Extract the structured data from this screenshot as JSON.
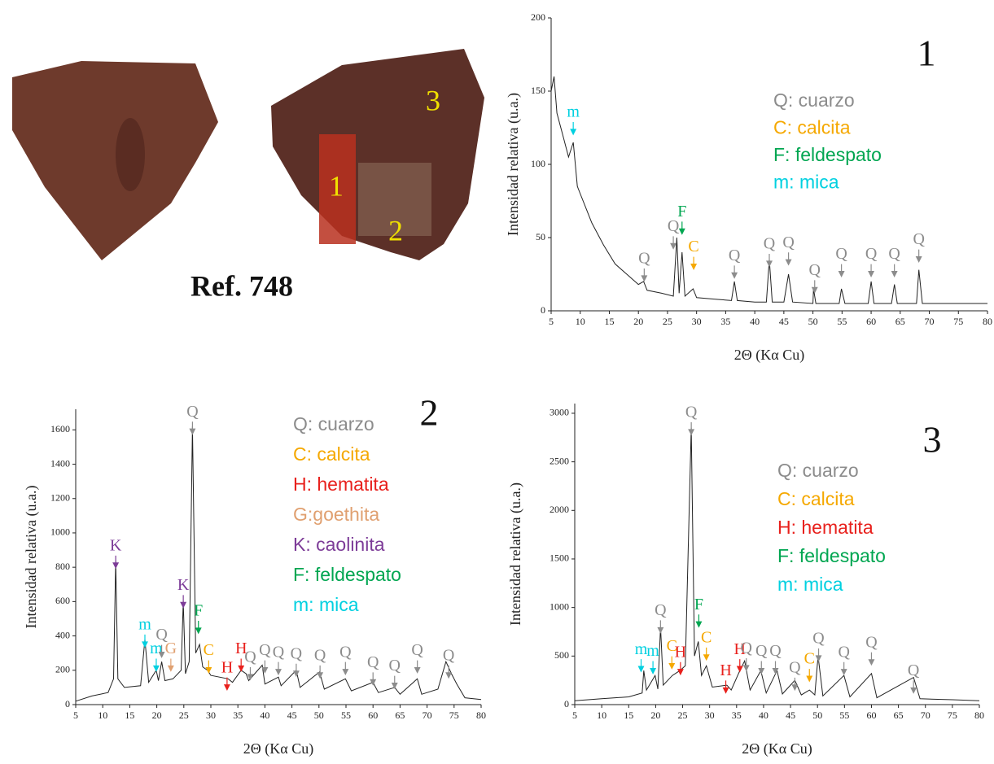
{
  "photo": {
    "caption": "Ref. 748",
    "markers": [
      "1",
      "2",
      "3"
    ]
  },
  "chart_data": [
    {
      "type": "line",
      "panel": "1",
      "xlabel": "2Θ (Kα Cu)",
      "ylabel": "Intensidad relativa (u.a.)",
      "color": "#222222",
      "xlim": [
        5,
        80
      ],
      "xticks": [
        5,
        10,
        15,
        20,
        25,
        30,
        35,
        40,
        45,
        50,
        55,
        60,
        65,
        70,
        75,
        80
      ],
      "ylim": [
        0,
        200
      ],
      "yticks": [
        0,
        50,
        100,
        150,
        200
      ],
      "x": [
        5,
        5.5,
        6,
        7,
        8,
        8.8,
        9.5,
        10,
        12,
        14,
        16,
        18,
        20,
        20.9,
        21.5,
        24,
        26,
        26.6,
        27,
        27.5,
        28,
        29.4,
        30,
        33,
        36,
        36.5,
        37,
        40,
        42,
        42.5,
        43,
        45,
        45.8,
        46.5,
        50,
        50.1,
        50.5,
        54.5,
        54.9,
        55.5,
        59.5,
        60,
        60.5,
        63.5,
        64,
        64.5,
        67.8,
        68.2,
        68.8,
        72,
        76,
        80
      ],
      "y": [
        150,
        160,
        135,
        120,
        105,
        115,
        85,
        80,
        60,
        45,
        32,
        25,
        18,
        20,
        14,
        12,
        10,
        50,
        12,
        40,
        10,
        15,
        9,
        8,
        7,
        20,
        7,
        6,
        6,
        35,
        6,
        6,
        25,
        6,
        5,
        15,
        5,
        5,
        15,
        5,
        5,
        20,
        5,
        5,
        18,
        5,
        5,
        28,
        5,
        5,
        5,
        5
      ],
      "legend": [
        {
          "text": "Q: cuarzo",
          "color": "#8c8c8c"
        },
        {
          "text": "C: calcita",
          "color": "#f5a800"
        },
        {
          "text": "F: feldespato",
          "color": "#00a651"
        },
        {
          "text": "m: mica",
          "color": "#00d0e0"
        }
      ],
      "annotations": [
        {
          "label": "m",
          "x": 8.8,
          "y": 135,
          "color": "#00d0e0"
        },
        {
          "label": "Q",
          "x": 21,
          "y": 35,
          "color": "#8c8c8c"
        },
        {
          "label": "Q",
          "x": 26,
          "y": 57,
          "color": "#8c8c8c"
        },
        {
          "label": "F",
          "x": 27.5,
          "y": 67,
          "color": "#00a651"
        },
        {
          "label": "C",
          "x": 29.5,
          "y": 43,
          "color": "#f5a800"
        },
        {
          "label": "Q",
          "x": 36.5,
          "y": 37,
          "color": "#8c8c8c"
        },
        {
          "label": "Q",
          "x": 42.5,
          "y": 45,
          "color": "#8c8c8c"
        },
        {
          "label": "Q",
          "x": 45.8,
          "y": 46,
          "color": "#8c8c8c"
        },
        {
          "label": "Q",
          "x": 50.3,
          "y": 27,
          "color": "#8c8c8c"
        },
        {
          "label": "Q",
          "x": 54.9,
          "y": 38,
          "color": "#8c8c8c"
        },
        {
          "label": "Q",
          "x": 60,
          "y": 38,
          "color": "#8c8c8c"
        },
        {
          "label": "Q",
          "x": 64,
          "y": 38,
          "color": "#8c8c8c"
        },
        {
          "label": "Q",
          "x": 68.2,
          "y": 48,
          "color": "#8c8c8c"
        }
      ]
    },
    {
      "type": "line",
      "panel": "2",
      "xlabel": "2Θ (Kα Cu)",
      "ylabel": "Intensidad relativa (u.a.)",
      "color": "#222222",
      "xlim": [
        5,
        80
      ],
      "xticks": [
        5,
        10,
        15,
        20,
        25,
        30,
        35,
        40,
        45,
        50,
        55,
        60,
        65,
        70,
        75,
        80
      ],
      "ylim": [
        0,
        1720
      ],
      "yticks": [
        0,
        200,
        400,
        600,
        800,
        1000,
        1200,
        1400,
        1600
      ],
      "x": [
        5,
        8,
        11,
        12,
        12.4,
        12.8,
        14,
        17,
        17.8,
        18.5,
        19.9,
        20.3,
        20.9,
        21.5,
        23,
        24.5,
        24.9,
        25.3,
        26,
        26.6,
        27.2,
        27.9,
        28.5,
        29.4,
        30,
        33.2,
        34,
        35.6,
        36.5,
        37,
        39.5,
        40,
        42.5,
        43,
        45.8,
        46.5,
        50.1,
        51,
        54.9,
        56,
        60,
        61,
        64,
        65,
        68.2,
        69,
        72,
        73.5,
        74.5,
        75.5,
        77,
        80
      ],
      "y": [
        20,
        50,
        70,
        150,
        840,
        150,
        100,
        110,
        380,
        130,
        200,
        140,
        250,
        140,
        150,
        200,
        600,
        180,
        250,
        1620,
        300,
        350,
        220,
        200,
        170,
        150,
        130,
        200,
        180,
        140,
        230,
        120,
        160,
        110,
        200,
        100,
        190,
        90,
        150,
        80,
        130,
        70,
        100,
        60,
        150,
        60,
        90,
        250,
        180,
        120,
        40,
        30
      ],
      "legend": [
        {
          "text": "Q: cuarzo",
          "color": "#8c8c8c"
        },
        {
          "text": "C: calcita",
          "color": "#f5a800"
        },
        {
          "text": "H: hematita",
          "color": "#e8201c"
        },
        {
          "text": "G:goethita",
          "color": "#e0a070"
        },
        {
          "text": "K: caolinita",
          "color": "#7d3c98"
        },
        {
          "text": "F: feldespato",
          "color": "#00a651"
        },
        {
          "text": "m: mica",
          "color": "#00d0e0"
        }
      ],
      "annotations": [
        {
          "label": "K",
          "x": 12.4,
          "y": 920,
          "color": "#7d3c98"
        },
        {
          "label": "m",
          "x": 17.8,
          "y": 460,
          "color": "#00d0e0"
        },
        {
          "label": "m",
          "x": 19.9,
          "y": 320,
          "color": "#00d0e0"
        },
        {
          "label": "Q",
          "x": 20.9,
          "y": 400,
          "color": "#8c8c8c"
        },
        {
          "label": "G",
          "x": 22.6,
          "y": 320,
          "color": "#e0a070"
        },
        {
          "label": "K",
          "x": 24.9,
          "y": 690,
          "color": "#7d3c98"
        },
        {
          "label": "Q",
          "x": 26.6,
          "y": 1700,
          "color": "#8c8c8c"
        },
        {
          "label": "F",
          "x": 27.7,
          "y": 540,
          "color": "#00a651"
        },
        {
          "label": "C",
          "x": 29.6,
          "y": 310,
          "color": "#f5a800"
        },
        {
          "label": "H",
          "x": 33,
          "y": 210,
          "color": "#e8201c"
        },
        {
          "label": "H",
          "x": 35.6,
          "y": 320,
          "color": "#e8201c"
        },
        {
          "label": "Q",
          "x": 37.3,
          "y": 270,
          "color": "#8c8c8c"
        },
        {
          "label": "Q",
          "x": 40,
          "y": 310,
          "color": "#8c8c8c"
        },
        {
          "label": "Q",
          "x": 42.5,
          "y": 300,
          "color": "#8c8c8c"
        },
        {
          "label": "Q",
          "x": 45.8,
          "y": 290,
          "color": "#8c8c8c"
        },
        {
          "label": "Q",
          "x": 50.2,
          "y": 280,
          "color": "#8c8c8c"
        },
        {
          "label": "Q",
          "x": 54.9,
          "y": 300,
          "color": "#8c8c8c"
        },
        {
          "label": "Q",
          "x": 60,
          "y": 240,
          "color": "#8c8c8c"
        },
        {
          "label": "Q",
          "x": 64,
          "y": 220,
          "color": "#8c8c8c"
        },
        {
          "label": "Q",
          "x": 68.2,
          "y": 310,
          "color": "#8c8c8c"
        },
        {
          "label": "Q",
          "x": 74,
          "y": 280,
          "color": "#8c8c8c"
        }
      ]
    },
    {
      "type": "line",
      "panel": "3",
      "xlabel": "2Θ (Kα Cu)",
      "ylabel": "Intensidad relativa (u.a.)",
      "color": "#222222",
      "xlim": [
        5,
        80
      ],
      "xticks": [
        5,
        10,
        15,
        20,
        25,
        30,
        35,
        40,
        45,
        50,
        55,
        60,
        65,
        70,
        75,
        80
      ],
      "ylim": [
        0,
        3100
      ],
      "yticks": [
        0,
        500,
        1000,
        1500,
        2000,
        2500,
        3000
      ],
      "x": [
        5,
        10,
        15,
        17.5,
        17.8,
        18.3,
        19.9,
        20.4,
        20.9,
        21.4,
        23.1,
        24.5,
        25.5,
        26.6,
        27.2,
        27.9,
        28.5,
        29.4,
        30.5,
        33.2,
        34,
        35.6,
        36.5,
        37.5,
        39.5,
        40.5,
        42.5,
        43.5,
        45.8,
        47,
        48.5,
        49.5,
        50.1,
        51,
        54.9,
        56,
        60,
        61,
        67.8,
        69,
        75,
        80
      ],
      "y": [
        40,
        60,
        80,
        120,
        350,
        150,
        300,
        160,
        800,
        200,
        300,
        350,
        400,
        2850,
        500,
        650,
        300,
        400,
        180,
        200,
        150,
        350,
        450,
        150,
        350,
        120,
        350,
        110,
        250,
        100,
        150,
        100,
        500,
        90,
        300,
        80,
        320,
        70,
        280,
        60,
        50,
        40
      ],
      "legend": [
        {
          "text": "Q: cuarzo",
          "color": "#8c8c8c"
        },
        {
          "text": "C: calcita",
          "color": "#f5a800"
        },
        {
          "text": "H: hematita",
          "color": "#e8201c"
        },
        {
          "text": "F: feldespato",
          "color": "#00a651"
        },
        {
          "text": "m: mica",
          "color": "#00d0e0"
        }
      ],
      "annotations": [
        {
          "label": "m",
          "x": 17.3,
          "y": 560,
          "color": "#00d0e0"
        },
        {
          "label": "m",
          "x": 19.5,
          "y": 540,
          "color": "#00d0e0"
        },
        {
          "label": "Q",
          "x": 20.9,
          "y": 960,
          "color": "#8c8c8c"
        },
        {
          "label": "C",
          "x": 23,
          "y": 590,
          "color": "#f5a800"
        },
        {
          "label": "H",
          "x": 24.6,
          "y": 530,
          "color": "#e8201c"
        },
        {
          "label": "Q",
          "x": 26.6,
          "y": 3000,
          "color": "#8c8c8c"
        },
        {
          "label": "F",
          "x": 28,
          "y": 1020,
          "color": "#00a651"
        },
        {
          "label": "C",
          "x": 29.4,
          "y": 680,
          "color": "#f5a800"
        },
        {
          "label": "H",
          "x": 33,
          "y": 340,
          "color": "#e8201c"
        },
        {
          "label": "H",
          "x": 35.6,
          "y": 560,
          "color": "#e8201c"
        },
        {
          "label": "Q",
          "x": 36.8,
          "y": 570,
          "color": "#8c8c8c"
        },
        {
          "label": "Q",
          "x": 39.6,
          "y": 540,
          "color": "#8c8c8c"
        },
        {
          "label": "Q",
          "x": 42.2,
          "y": 540,
          "color": "#8c8c8c"
        },
        {
          "label": "Q",
          "x": 45.8,
          "y": 370,
          "color": "#8c8c8c"
        },
        {
          "label": "C",
          "x": 48.5,
          "y": 460,
          "color": "#f5a800"
        },
        {
          "label": "Q",
          "x": 50.2,
          "y": 670,
          "color": "#8c8c8c"
        },
        {
          "label": "Q",
          "x": 54.9,
          "y": 530,
          "color": "#8c8c8c"
        },
        {
          "label": "Q",
          "x": 60,
          "y": 630,
          "color": "#8c8c8c"
        },
        {
          "label": "Q",
          "x": 67.8,
          "y": 340,
          "color": "#8c8c8c"
        }
      ]
    }
  ]
}
